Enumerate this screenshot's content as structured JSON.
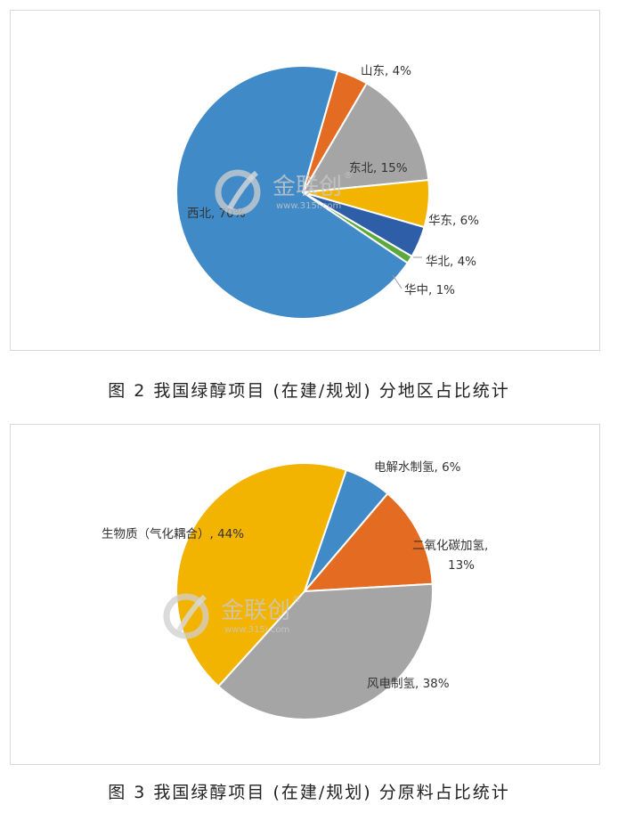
{
  "captions": [
    "图 2  我国绿醇项目 (在建/规划) 分地区占比统计",
    "图 3  我国绿醇项目 (在建/规划) 分原料占比统计"
  ],
  "watermark": {
    "brand": "金联创",
    "registered": "®",
    "url": "www.315i.com"
  },
  "chart_data": [
    {
      "type": "pie",
      "start_angle_deg": 16,
      "slices": [
        {
          "label": "山东, 4%",
          "value": 4,
          "color": "#E46C22"
        },
        {
          "label": "东北, 15%",
          "value": 15,
          "color": "#A5A5A5"
        },
        {
          "label": "华东, 6%",
          "value": 6,
          "color": "#F2B400"
        },
        {
          "label": "华北, 4%",
          "value": 4,
          "color": "#2E5EA8"
        },
        {
          "label": "华中, 1%",
          "value": 1,
          "color": "#5BA93C"
        },
        {
          "label": "西北, 70%",
          "value": 70,
          "color": "#3F8AC7"
        }
      ]
    },
    {
      "type": "pie",
      "start_angle_deg": 19,
      "slices": [
        {
          "label": "电解水制氢, 6%",
          "value": 6,
          "color": "#3F8AC7"
        },
        {
          "label": "二氧化碳加氢,\n13%",
          "value": 13,
          "color": "#E46C22"
        },
        {
          "label": "风电制氢, 38%",
          "value": 38,
          "color": "#A5A5A5"
        },
        {
          "label": "生物质（气化耦合）, 44%",
          "value": 44,
          "color": "#F2B400"
        }
      ]
    }
  ]
}
